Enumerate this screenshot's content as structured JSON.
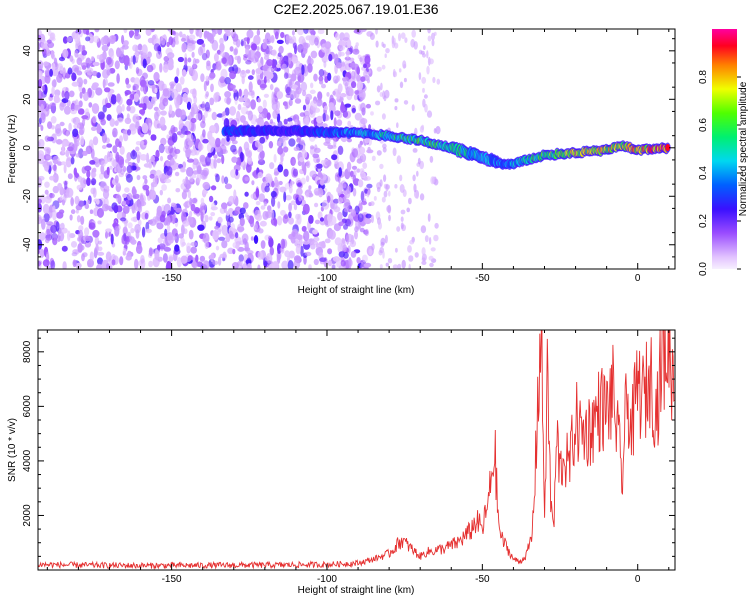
{
  "figure_title": "C2E2.2025.067.19.01.E36",
  "colors": {
    "snr_line": "#e53030",
    "axis": "#000000",
    "frame": "#000000"
  },
  "chart_data": [
    {
      "type": "heatmap",
      "title": "C2E2.2025.067.19.01.E36",
      "xlabel": "Height of straight line (km)",
      "ylabel": "Frequency (Hz)",
      "xlim": [
        -193,
        12
      ],
      "ylim": [
        -50,
        49
      ],
      "x_ticks": [
        -150,
        -100,
        -50,
        0
      ],
      "x_tick_labels": [
        "-150",
        "-100",
        "-50",
        "0"
      ],
      "y_ticks": [
        -40,
        -20,
        0,
        20,
        40
      ],
      "y_tick_labels": [
        "-40",
        "-20",
        "0",
        "20",
        "40"
      ],
      "colorbar": {
        "label": "Normalized spectral amplitude",
        "range": [
          0,
          1
        ],
        "ticks": [
          0.0,
          0.2,
          0.4,
          0.6,
          0.8
        ],
        "tick_labels": [
          "0.0",
          "0.2",
          "0.4",
          "0.6",
          "0.8"
        ]
      },
      "signal_ridge": {
        "x": [
          -133,
          -110,
          -90,
          -80,
          -70,
          -60,
          -50,
          -43,
          -38,
          -30,
          -20,
          -10,
          -5,
          0,
          10
        ],
        "freq": [
          7,
          7,
          6,
          5,
          3,
          0,
          -4,
          -7,
          -6,
          -3,
          -2,
          -1,
          1,
          -1,
          0
        ],
        "amplitude": [
          0.35,
          0.3,
          0.45,
          0.55,
          0.65,
          0.6,
          0.5,
          0.4,
          0.5,
          0.65,
          0.8,
          0.85,
          0.75,
          0.9,
          0.95
        ]
      },
      "noise_region_x": [
        -193,
        -86
      ]
    },
    {
      "type": "line",
      "xlabel": "Height of straight line (km)",
      "ylabel": "SNR (10 * v/v)",
      "xlim": [
        -193,
        12
      ],
      "ylim": [
        0,
        8800
      ],
      "x_ticks": [
        -150,
        -100,
        -50,
        0
      ],
      "x_tick_labels": [
        "-150",
        "-100",
        "-50",
        "0"
      ],
      "y_ticks": [
        2000,
        4000,
        6000,
        8000
      ],
      "y_tick_labels": [
        "2000",
        "4000",
        "6000",
        "8000"
      ],
      "series": [
        {
          "name": "SNR",
          "x": [
            -193,
            -180,
            -160,
            -140,
            -120,
            -100,
            -90,
            -85,
            -80,
            -76,
            -74,
            -72,
            -70,
            -68,
            -62,
            -58,
            -54,
            -52,
            -50,
            -48,
            -46,
            -45,
            -44,
            -42,
            -40,
            -38,
            -36,
            -34,
            -33,
            -32,
            -31,
            -30,
            -29,
            -28,
            -27,
            -26,
            -25,
            -24,
            -22,
            -20,
            -18,
            -15,
            -12,
            -10,
            -8,
            -6,
            -5,
            -4,
            -3,
            -2,
            0,
            2,
            4,
            6,
            8,
            10,
            12
          ],
          "y": [
            200,
            180,
            160,
            170,
            180,
            200,
            250,
            400,
            600,
            1100,
            900,
            700,
            500,
            650,
            800,
            1000,
            1400,
            1800,
            1500,
            2500,
            4500,
            2000,
            1200,
            800,
            400,
            300,
            500,
            1200,
            3500,
            6800,
            8700,
            2000,
            7200,
            2500,
            1500,
            5000,
            3500,
            4200,
            3800,
            5500,
            5000,
            5200,
            6000,
            5800,
            6500,
            4500,
            3200,
            5500,
            6200,
            5000,
            6800,
            6200,
            7200,
            5800,
            7800,
            8300,
            6500
          ]
        }
      ]
    }
  ]
}
